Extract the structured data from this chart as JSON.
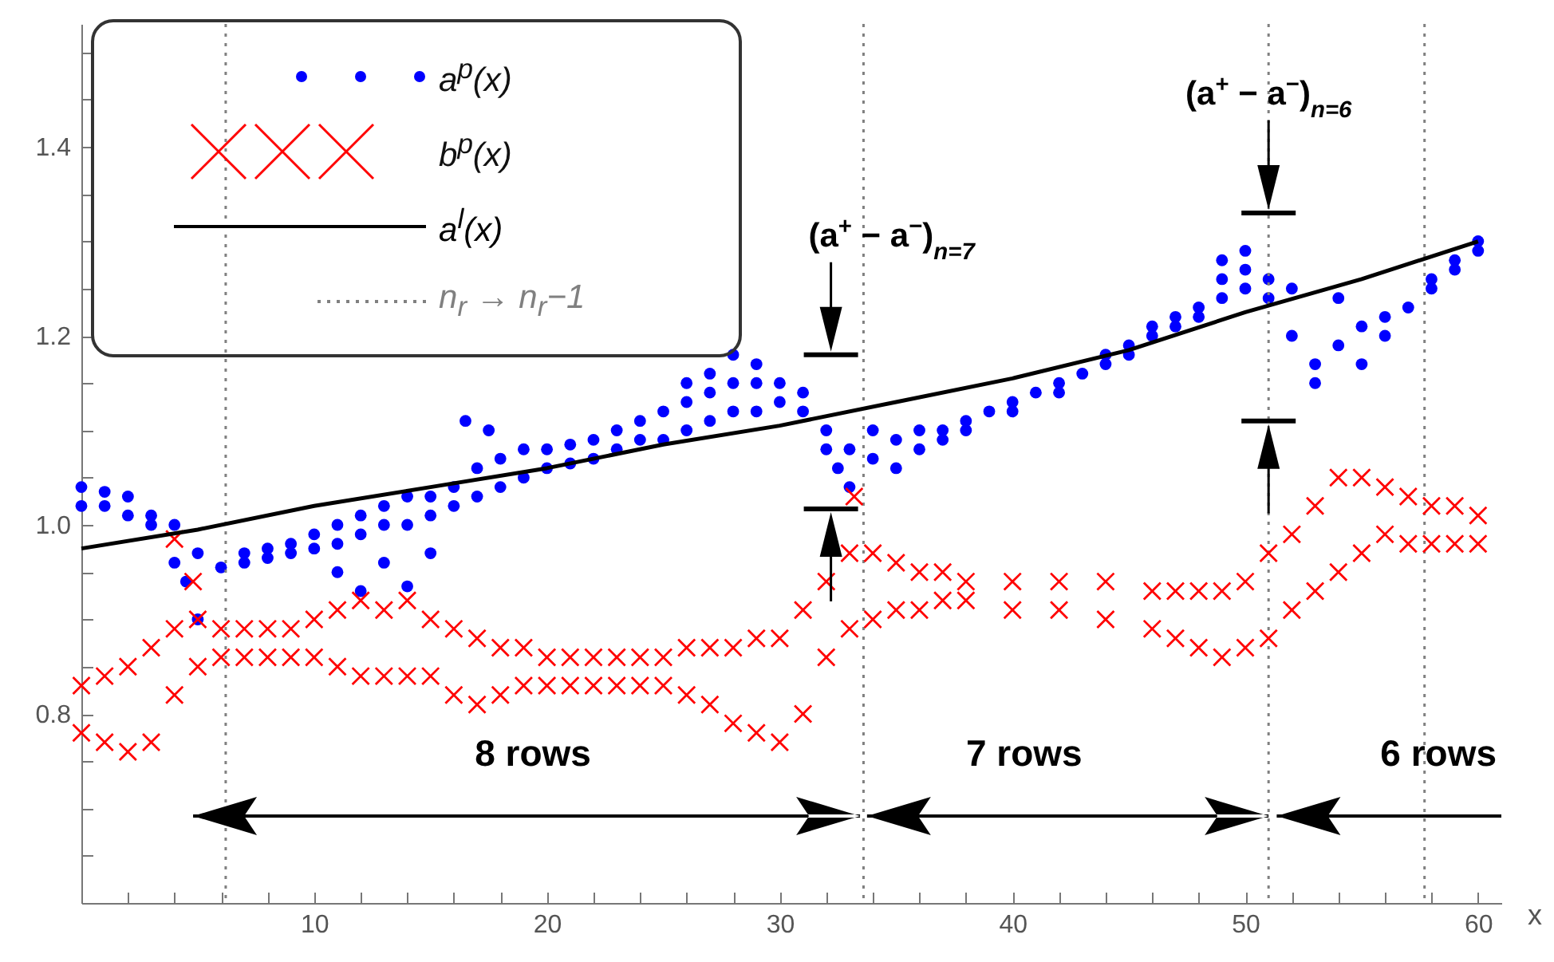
{
  "chart_data": {
    "type": "scatter",
    "xlabel": "x",
    "xlim": [
      0,
      61
    ],
    "ylim": [
      0.6,
      1.53
    ],
    "xticks": [
      {
        "value": 0,
        "label": null
      },
      {
        "value": 2,
        "label": null
      },
      {
        "value": 4,
        "label": null
      },
      {
        "value": 6,
        "label": null
      },
      {
        "value": 8,
        "label": null
      },
      10,
      {
        "value": 12,
        "label": null
      },
      {
        "value": 14,
        "label": null
      },
      {
        "value": 16,
        "label": null
      },
      {
        "value": 18,
        "label": null
      },
      20,
      {
        "value": 22,
        "label": null
      },
      {
        "value": 24,
        "label": null
      },
      {
        "value": 26,
        "label": null
      },
      {
        "value": 28,
        "label": null
      },
      30,
      {
        "value": 32,
        "label": null
      },
      {
        "value": 34,
        "label": null
      },
      {
        "value": 36,
        "label": null
      },
      {
        "value": 38,
        "label": null
      },
      40,
      {
        "value": 42,
        "label": null
      },
      {
        "value": 44,
        "label": null
      },
      {
        "value": 46,
        "label": null
      },
      {
        "value": 48,
        "label": null
      },
      50,
      {
        "value": 52,
        "label": null
      },
      {
        "value": 54,
        "label": null
      },
      {
        "value": 56,
        "label": null
      },
      {
        "value": 58,
        "label": null
      },
      60
    ],
    "yticks": [
      {
        "value": 0.65,
        "label": null
      },
      {
        "value": 0.7,
        "label": null
      },
      {
        "value": 0.75,
        "label": null
      },
      0.8,
      {
        "value": 0.85,
        "label": null
      },
      {
        "value": 0.9,
        "label": null
      },
      {
        "value": 0.95,
        "label": null
      },
      {
        "value": 1,
        "label": "1.0"
      },
      {
        "value": 1.05,
        "label": null
      },
      {
        "value": 1.1,
        "label": null
      },
      {
        "value": 1.15,
        "label": null
      },
      1.2,
      {
        "value": 1.25,
        "label": null
      },
      {
        "value": 1.3,
        "label": null
      },
      {
        "value": 1.35,
        "label": null
      },
      1.4,
      {
        "value": 1.45,
        "label": null
      },
      {
        "value": 1.5,
        "label": null
      }
    ],
    "legend": "top left",
    "series": [
      {
        "name": "a$^{p}$(x)",
        "color": "#0000ff",
        "marker": "circle",
        "x": [
          0,
          0,
          1,
          1,
          2,
          2,
          3,
          3,
          4,
          4,
          4.5,
          5,
          5,
          6,
          7,
          7,
          8,
          8,
          9,
          9,
          10,
          10,
          11,
          11,
          11,
          12,
          12,
          12,
          13,
          13,
          13,
          14,
          14,
          14,
          15,
          15,
          15,
          16,
          16,
          16.5,
          17,
          17,
          17.5,
          18,
          18,
          19,
          19,
          20,
          20,
          21,
          21,
          22,
          22,
          23,
          23,
          24,
          24,
          25,
          25,
          26,
          26,
          26,
          27,
          27,
          27,
          28,
          28,
          28,
          29,
          29,
          29,
          30,
          30,
          31,
          31,
          32,
          32,
          32.5,
          33,
          33,
          34,
          34,
          35,
          35,
          36,
          36,
          37,
          37,
          38,
          38,
          39,
          40,
          40,
          41,
          42,
          42,
          43,
          44,
          44,
          45,
          45,
          46,
          46,
          47,
          47,
          48,
          48,
          49,
          49,
          49,
          50,
          50,
          50,
          51,
          51,
          52,
          52,
          53,
          53,
          54,
          54,
          55,
          55,
          56,
          56,
          57,
          58,
          58,
          59,
          59,
          60,
          60
        ],
        "values": [
          1.04,
          1.02,
          1.035,
          1.02,
          1.03,
          1.01,
          1.01,
          1.0,
          1.0,
          0.96,
          0.94,
          0.97,
          0.9,
          0.955,
          0.96,
          0.97,
          0.965,
          0.975,
          0.97,
          0.98,
          0.975,
          0.99,
          0.98,
          1.0,
          0.95,
          0.99,
          1.01,
          0.93,
          1.0,
          1.02,
          0.96,
          1.0,
          1.03,
          0.935,
          1.01,
          1.03,
          0.97,
          1.02,
          1.04,
          1.11,
          1.03,
          1.06,
          1.1,
          1.04,
          1.07,
          1.05,
          1.08,
          1.06,
          1.08,
          1.065,
          1.085,
          1.07,
          1.09,
          1.08,
          1.1,
          1.09,
          1.11,
          1.09,
          1.12,
          1.1,
          1.13,
          1.15,
          1.11,
          1.14,
          1.16,
          1.12,
          1.15,
          1.18,
          1.12,
          1.15,
          1.17,
          1.13,
          1.15,
          1.12,
          1.14,
          1.1,
          1.08,
          1.06,
          1.08,
          1.04,
          1.1,
          1.07,
          1.09,
          1.06,
          1.1,
          1.08,
          1.1,
          1.09,
          1.11,
          1.1,
          1.12,
          1.13,
          1.12,
          1.14,
          1.15,
          1.14,
          1.16,
          1.17,
          1.18,
          1.19,
          1.18,
          1.2,
          1.21,
          1.22,
          1.21,
          1.23,
          1.22,
          1.24,
          1.26,
          1.28,
          1.25,
          1.27,
          1.29,
          1.26,
          1.24,
          1.2,
          1.25,
          1.17,
          1.15,
          1.19,
          1.24,
          1.21,
          1.17,
          1.22,
          1.2,
          1.23,
          1.25,
          1.26,
          1.27,
          1.28,
          1.29,
          1.3
        ]
      },
      {
        "name": "b$^{p}$(x)",
        "color": "#ff0000",
        "marker": "cross",
        "x": [
          0,
          0,
          1,
          1,
          2,
          2,
          3,
          3,
          4,
          4,
          5,
          5,
          6,
          6,
          7,
          7,
          8,
          8,
          9,
          9,
          10,
          10,
          11,
          11,
          12,
          12,
          13,
          13,
          14,
          14,
          15,
          15,
          16,
          16,
          17,
          17,
          18,
          18,
          19,
          19,
          20,
          20,
          21,
          21,
          22,
          22,
          23,
          23,
          24,
          24,
          25,
          25,
          26,
          26,
          27,
          27,
          28,
          28,
          29,
          29,
          30,
          30,
          31,
          31,
          32,
          32,
          33,
          33,
          34,
          34,
          35,
          35,
          36,
          36,
          37,
          37,
          38,
          38,
          40,
          40,
          42,
          42,
          44,
          44,
          46,
          46,
          47,
          47,
          48,
          48,
          49,
          49,
          50,
          50,
          51,
          51,
          52,
          52,
          53,
          53,
          54,
          54,
          55,
          55,
          56,
          56,
          57,
          57,
          58,
          58,
          59,
          59,
          60,
          60,
          4,
          4.8,
          33.2
        ],
        "values": [
          0.78,
          0.83,
          0.77,
          0.84,
          0.76,
          0.85,
          0.77,
          0.87,
          0.82,
          0.89,
          0.85,
          0.9,
          0.86,
          0.89,
          0.86,
          0.89,
          0.86,
          0.89,
          0.86,
          0.89,
          0.86,
          0.9,
          0.85,
          0.91,
          0.84,
          0.92,
          0.84,
          0.91,
          0.84,
          0.92,
          0.84,
          0.9,
          0.82,
          0.89,
          0.81,
          0.88,
          0.82,
          0.87,
          0.83,
          0.87,
          0.83,
          0.86,
          0.83,
          0.86,
          0.83,
          0.86,
          0.83,
          0.86,
          0.83,
          0.86,
          0.83,
          0.86,
          0.82,
          0.87,
          0.81,
          0.87,
          0.79,
          0.87,
          0.78,
          0.88,
          0.77,
          0.88,
          0.8,
          0.91,
          0.86,
          0.94,
          0.89,
          0.97,
          0.9,
          0.97,
          0.91,
          0.96,
          0.91,
          0.95,
          0.92,
          0.95,
          0.92,
          0.94,
          0.91,
          0.94,
          0.91,
          0.94,
          0.9,
          0.94,
          0.89,
          0.93,
          0.88,
          0.93,
          0.87,
          0.93,
          0.86,
          0.93,
          0.87,
          0.94,
          0.88,
          0.97,
          0.91,
          0.99,
          0.93,
          1.02,
          0.95,
          1.05,
          0.97,
          1.05,
          0.99,
          1.04,
          0.98,
          1.03,
          0.98,
          1.02,
          0.98,
          1.02,
          0.98,
          1.01,
          0.985,
          0.94,
          1.03
        ]
      },
      {
        "name": "a$^{l}$(x)",
        "type": "line",
        "color": "#000000",
        "marker": "none",
        "x": [
          0,
          5,
          10,
          15,
          20,
          25,
          30,
          35,
          40,
          45,
          50,
          55,
          60
        ],
        "values": [
          0.975,
          0.995,
          1.02,
          1.04,
          1.06,
          1.085,
          1.105,
          1.13,
          1.155,
          1.185,
          1.225,
          1.26,
          1.3
        ]
      }
    ],
    "ref_lines": [
      {
        "axis": "x",
        "value": 6.2,
        "label": "n$_{r}$ → n$_{r}$−1",
        "color": "#808080",
        "line_style": "dotted"
      },
      {
        "axis": "x",
        "value": 33.6,
        "label": null,
        "color": "#808080",
        "line_style": "dotted"
      },
      {
        "axis": "x",
        "value": 51,
        "label": null,
        "color": "#808080",
        "line_style": "dotted"
      },
      {
        "axis": "x",
        "value": 57.7,
        "label": null,
        "color": "#808080",
        "line_style": "dotted"
      }
    ],
    "annotations": [
      "8 rows",
      "7 rows",
      "6 rows",
      "(a$^{+}$ − a$^{−}$)$_{n=7}$",
      {
        "text": "(a$^{+}$ − a$^{−}$)$_{n=6}$",
        "x": 51,
        "y": 1.33
      }
    ]
  }
}
